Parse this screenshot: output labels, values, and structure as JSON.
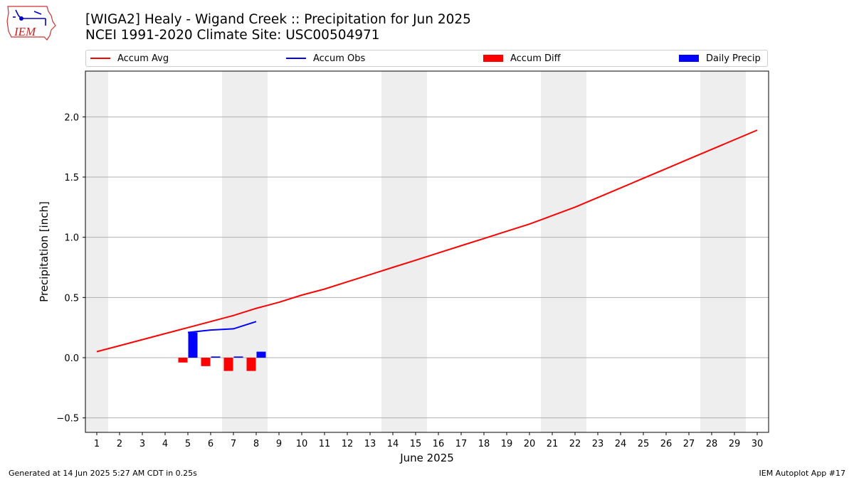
{
  "header": {
    "title_line1": "[WIGA2] Healy - Wigand Creek :: Precipitation for Jun 2025",
    "title_line2": "NCEI 1991-2020 Climate Site: USC00504971",
    "logo_text": "IEM"
  },
  "legend": {
    "items": [
      {
        "label": "Accum Avg",
        "kind": "line",
        "color": "#ff0000"
      },
      {
        "label": "Accum Obs",
        "kind": "line",
        "color": "#0000ff"
      },
      {
        "label": "Accum Diff",
        "kind": "patch",
        "color": "#ff0000"
      },
      {
        "label": "Daily Precip",
        "kind": "patch",
        "color": "#0000ff"
      }
    ]
  },
  "footer": {
    "left": "Generated at 14 Jun 2025 5:27 AM CDT in 0.25s",
    "right": "IEM Autoplot App #17"
  },
  "chart_data": {
    "type": "line",
    "xlabel": "June 2025",
    "ylabel": "Precipitation [inch]",
    "xlim": [
      0.5,
      30.5
    ],
    "ylim": [
      -0.62,
      2.38
    ],
    "x_ticks": [
      1,
      2,
      3,
      4,
      5,
      6,
      7,
      8,
      9,
      10,
      11,
      12,
      13,
      14,
      15,
      16,
      17,
      18,
      19,
      20,
      21,
      22,
      23,
      24,
      25,
      26,
      27,
      28,
      29,
      30
    ],
    "y_ticks": [
      -0.5,
      0.0,
      0.5,
      1.0,
      1.5,
      2.0
    ],
    "y_tick_labels": [
      "−0.5",
      "0.0",
      "0.5",
      "1.0",
      "1.5",
      "2.0"
    ],
    "grid": "horizontal",
    "weekend_shading": [
      [
        0.5,
        1.5
      ],
      [
        6.5,
        8.5
      ],
      [
        13.5,
        15.5
      ],
      [
        20.5,
        22.5
      ],
      [
        27.5,
        29.5
      ]
    ],
    "shading_color": "#eeeeee",
    "series": [
      {
        "name": "Accum Avg",
        "type": "line",
        "color": "#ff0000",
        "x": [
          1,
          2,
          3,
          4,
          5,
          6,
          7,
          8,
          9,
          10,
          11,
          12,
          13,
          14,
          15,
          16,
          17,
          18,
          19,
          20,
          21,
          22,
          23,
          24,
          25,
          26,
          27,
          28,
          29,
          30
        ],
        "values": [
          0.05,
          0.1,
          0.15,
          0.2,
          0.25,
          0.3,
          0.35,
          0.41,
          0.46,
          0.52,
          0.57,
          0.63,
          0.69,
          0.75,
          0.81,
          0.87,
          0.93,
          0.99,
          1.05,
          1.11,
          1.18,
          1.25,
          1.33,
          1.41,
          1.49,
          1.57,
          1.65,
          1.73,
          1.81,
          1.89
        ]
      },
      {
        "name": "Accum Obs",
        "type": "line",
        "color": "#0000ff",
        "x": [
          5,
          6,
          7,
          8
        ],
        "values": [
          0.21,
          0.23,
          0.24,
          0.3
        ]
      },
      {
        "name": "Accum Diff",
        "type": "bar",
        "color": "#ff0000",
        "x": [
          5,
          6,
          7,
          8
        ],
        "values": [
          -0.04,
          -0.07,
          -0.11,
          -0.11
        ]
      },
      {
        "name": "Daily Precip",
        "type": "bar",
        "color": "#0000ff",
        "x": [
          5,
          6,
          7,
          8
        ],
        "values": [
          0.21,
          0.01,
          0.01,
          0.05
        ]
      }
    ]
  }
}
